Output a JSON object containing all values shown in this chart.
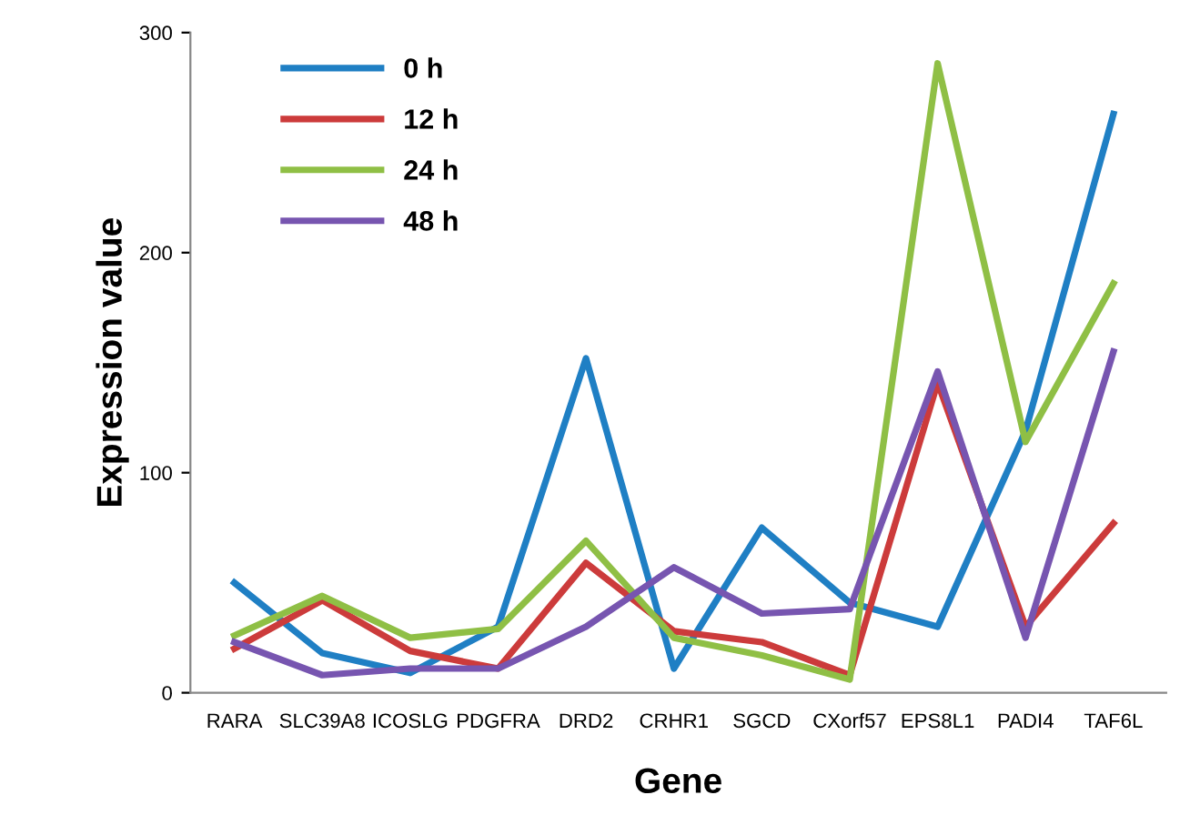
{
  "chart_data": {
    "type": "line",
    "xlabel": "Gene",
    "ylabel": "Expression value",
    "categories": [
      "RARA",
      "SLC39A8",
      "ICOSLG",
      "PDGFRA",
      "DRD2",
      "CRHR1",
      "SGCD",
      "CXorf57",
      "EPS8L1",
      "PADI4",
      "TAF6L"
    ],
    "series": [
      {
        "name": "0 h",
        "color": "#1f7fc4",
        "values": [
          50,
          18,
          9,
          30,
          152,
          11,
          75,
          41,
          30,
          119,
          263
        ]
      },
      {
        "name": "12 h",
        "color": "#cc3b3b",
        "values": [
          20,
          42,
          19,
          11,
          59,
          28,
          23,
          8,
          141,
          30,
          77
        ]
      },
      {
        "name": "24 h",
        "color": "#8fbf45",
        "values": [
          26,
          44,
          25,
          29,
          69,
          25,
          17,
          6,
          286,
          114,
          186
        ]
      },
      {
        "name": "48 h",
        "color": "#7755b0",
        "values": [
          23,
          8,
          11,
          11,
          30,
          57,
          36,
          38,
          146,
          25,
          155
        ]
      }
    ],
    "ylim": [
      0,
      300
    ],
    "yticks": [
      0,
      100,
      200,
      300
    ],
    "grid": false,
    "legend": "top left",
    "marker": "none",
    "line_style": "solid"
  }
}
